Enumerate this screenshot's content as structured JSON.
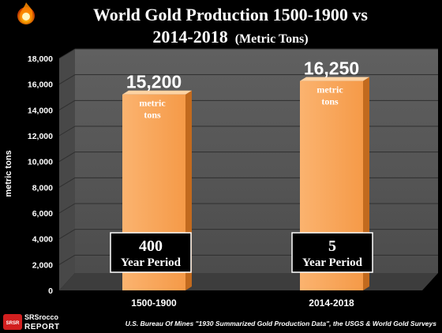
{
  "chart_data": {
    "type": "bar",
    "title_line1": "World Gold Production 1500-1900 vs",
    "title_line2_bold": "2014-2018",
    "title_line2_small": "(Metric Tons)",
    "ylabel": "metric tons",
    "ylim": [
      0,
      18000
    ],
    "yticks": [
      "0",
      "2,000",
      "4,000",
      "6,000",
      "8,000",
      "10,000",
      "12,000",
      "14,000",
      "16,000",
      "18,000"
    ],
    "grid": true,
    "categories": [
      "1500-1900",
      "2014-2018"
    ],
    "values": [
      15200,
      16250
    ],
    "value_labels": [
      "15,200",
      "16,250"
    ],
    "unit_labels": [
      [
        "metric",
        "tons"
      ],
      [
        "metric",
        "tons"
      ]
    ],
    "period_boxes": [
      {
        "number": "400",
        "label": "Year Period"
      },
      {
        "number": "5",
        "label": "Year Period"
      }
    ],
    "source": "U.S. Bureau Of Mines \"1930 Summarized Gold Production Data\", the USGS & World Gold Surveys",
    "logo": {
      "line1": "SRSrocco",
      "line2": "REPORT",
      "badge": "SRSR"
    },
    "colors": {
      "background": "#000000",
      "bar_front": "#f9a55a",
      "bar_side": "#c26a1e",
      "bar_top": "#ffd3a3",
      "plot_back": "#5a5a5a",
      "plot_floor": "#3e3e3e",
      "grid": "#2a2a2a",
      "text": "#ffffff"
    }
  }
}
